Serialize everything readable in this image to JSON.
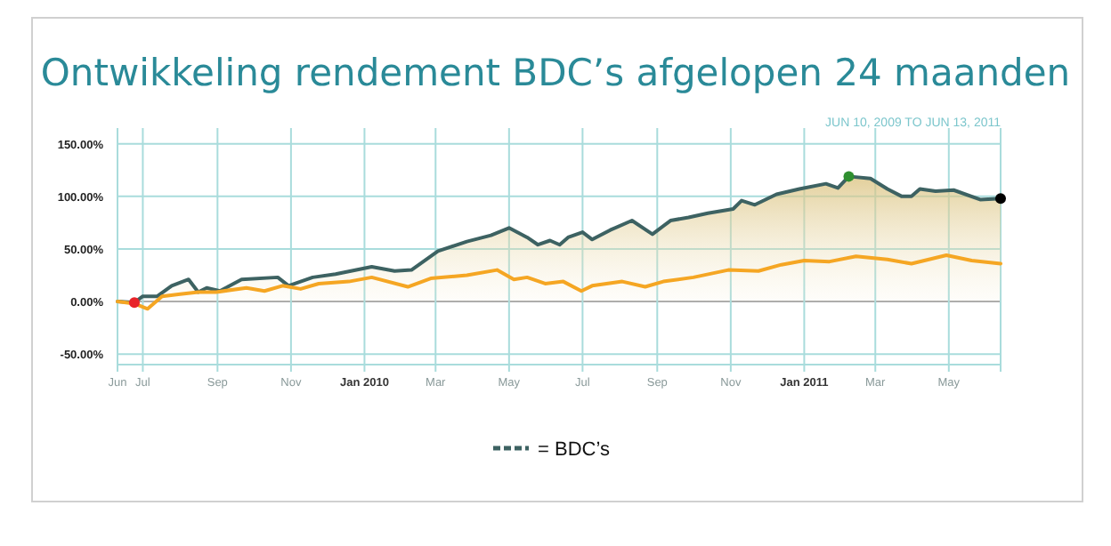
{
  "chart_data": {
    "type": "line",
    "title": "Ontwikkeling rendement BDC’s afgelopen 24 maanden",
    "annotations": [
      "JUN 10, 2009 TO JUN 13, 2011"
    ],
    "xlim": [
      "2009-06-10",
      "2011-06-13"
    ],
    "xticks": [
      {
        "value": "2009-06-10",
        "label": "Jun"
      },
      {
        "value": "2009-07-01",
        "label": "Jul"
      },
      {
        "value": "2009-09-01",
        "label": "Sep"
      },
      {
        "value": "2009-11-01",
        "label": "Nov"
      },
      {
        "value": "2010-01-01",
        "label": "Jan 2010"
      },
      {
        "value": "2010-03-01",
        "label": "Mar"
      },
      {
        "value": "2010-05-01",
        "label": "May"
      },
      {
        "value": "2010-07-01",
        "label": "Jul"
      },
      {
        "value": "2010-09-01",
        "label": "Sep"
      },
      {
        "value": "2010-11-01",
        "label": "Nov"
      },
      {
        "value": "2011-01-01",
        "label": "Jan 2011"
      },
      {
        "value": "2011-03-01",
        "label": "Mar"
      },
      {
        "value": "2011-05-01",
        "label": "May"
      },
      {
        "value": "2011-06-13",
        "label": null
      }
    ],
    "ylim": [
      -60,
      165
    ],
    "yticks": [
      {
        "value": -50,
        "label": "-50.00%"
      },
      {
        "value": 0,
        "label": "0.00%"
      },
      {
        "value": 50,
        "label": "50.00%"
      },
      {
        "value": 100,
        "label": "100.00%"
      },
      {
        "value": 150,
        "label": "150.00%"
      }
    ],
    "grid": true,
    "legend": "bottom",
    "line_style": "solid",
    "series": [
      {
        "type": "area",
        "name": "= BDC’s",
        "color": "#3d6262",
        "x": [
          "2009-06-10",
          "2009-06-24",
          "2009-07-01",
          "2009-07-13",
          "2009-07-25",
          "2009-08-08",
          "2009-08-16",
          "2009-08-23",
          "2009-09-03",
          "2009-09-21",
          "2009-10-21",
          "2009-10-30",
          "2009-11-19",
          "2009-12-08",
          "2010-01-07",
          "2010-01-26",
          "2010-02-09",
          "2010-03-03",
          "2010-03-27",
          "2010-04-16",
          "2010-05-01",
          "2010-05-16",
          "2010-05-25",
          "2010-06-04",
          "2010-06-12",
          "2010-06-19",
          "2010-07-01",
          "2010-07-09",
          "2010-07-24",
          "2010-08-11",
          "2010-08-28",
          "2010-09-12",
          "2010-09-27",
          "2010-10-13",
          "2010-11-03",
          "2010-11-10",
          "2010-11-21",
          "2010-12-09",
          "2010-12-28",
          "2011-01-19",
          "2011-01-29",
          "2011-02-07",
          "2011-02-25",
          "2011-03-11",
          "2011-03-23",
          "2011-03-31",
          "2011-04-07",
          "2011-04-20",
          "2011-05-05",
          "2011-05-27",
          "2011-06-13"
        ],
        "values": [
          0,
          -1,
          5,
          5,
          15,
          21,
          9,
          13,
          10,
          21,
          23,
          15,
          23,
          26,
          33,
          29,
          30,
          48,
          57,
          63,
          70,
          61,
          54,
          58,
          54,
          61,
          66,
          59,
          68,
          77,
          64,
          77,
          80,
          84,
          88,
          96,
          92,
          102,
          107,
          112,
          108,
          119,
          117,
          107,
          100,
          100,
          107,
          105,
          106,
          97,
          98
        ]
      },
      {
        "type": "line",
        "color": "#f5a623",
        "x": [
          "2009-06-10",
          "2009-06-24",
          "2009-07-05",
          "2009-07-17",
          "2009-08-01",
          "2009-08-16",
          "2009-08-31",
          "2009-09-25",
          "2009-10-10",
          "2009-10-25",
          "2009-11-09",
          "2009-11-24",
          "2009-12-19",
          "2010-01-07",
          "2010-02-06",
          "2010-02-25",
          "2010-03-27",
          "2010-04-21",
          "2010-05-05",
          "2010-05-16",
          "2010-05-31",
          "2010-06-15",
          "2010-06-30",
          "2010-07-09",
          "2010-08-03",
          "2010-08-22",
          "2010-09-06",
          "2010-10-01",
          "2010-10-30",
          "2010-11-24",
          "2010-12-13",
          "2011-01-01",
          "2011-01-22",
          "2011-02-13",
          "2011-03-11",
          "2011-03-31",
          "2011-04-29",
          "2011-05-20",
          "2011-06-13"
        ],
        "values": [
          0,
          -2,
          -7,
          5,
          7,
          9,
          9,
          13,
          10,
          15,
          12,
          17,
          19,
          23,
          14,
          22,
          25,
          30,
          21,
          23,
          17,
          19,
          10,
          15,
          19,
          14,
          19,
          23,
          30,
          29,
          35,
          39,
          38,
          43,
          40,
          36,
          44,
          39,
          36
        ]
      },
      {
        "type": "scatter",
        "x": [
          "2009-06-24",
          "2011-02-07",
          "2011-06-13"
        ],
        "values": [
          -1,
          119,
          98
        ],
        "colors": [
          "#e8242a",
          "#2f8f2f",
          "#000000"
        ]
      }
    ]
  }
}
